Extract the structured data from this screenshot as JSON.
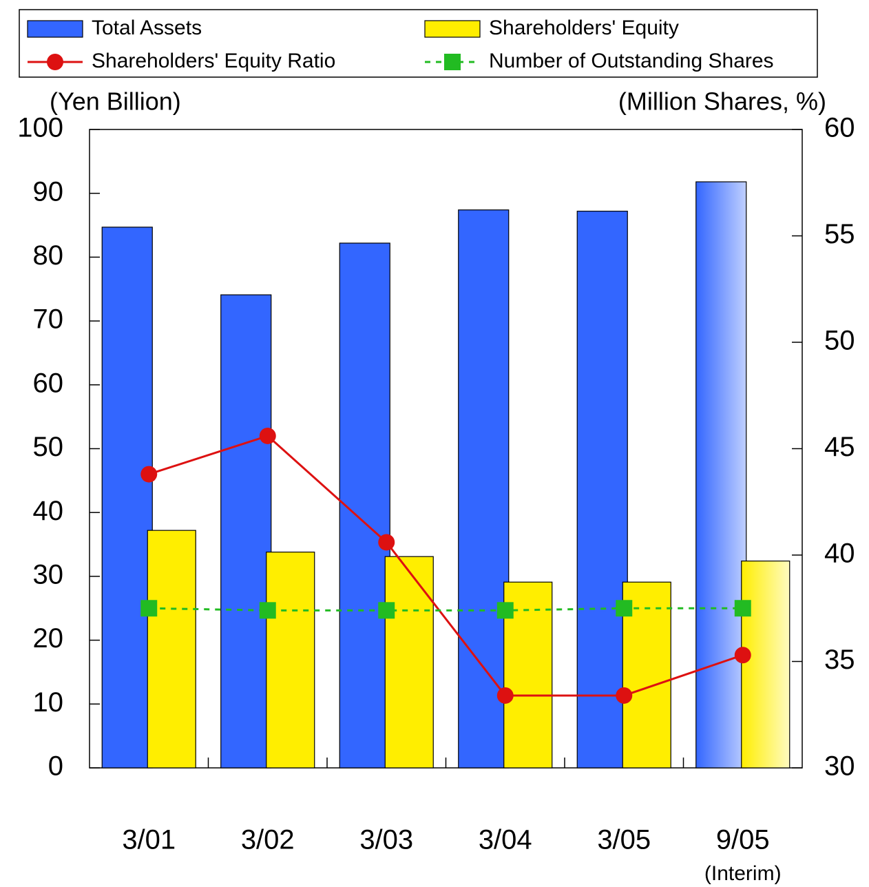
{
  "chart_data": {
    "type": "bar",
    "categories": [
      "3/01",
      "3/02",
      "3/03",
      "3/04",
      "3/05",
      "9/05"
    ],
    "annotations": [
      "(Interim)"
    ],
    "ylabel": "(Yen Billion)",
    "y2label": "(Million Shares, %)",
    "ylim": [
      0,
      100
    ],
    "yticks": [
      0,
      10,
      20,
      30,
      40,
      50,
      60,
      70,
      80,
      90,
      100
    ],
    "y2lim": [
      30,
      60
    ],
    "y2ticks": [
      30,
      35,
      40,
      45,
      50,
      55,
      60
    ],
    "grid": false,
    "series": [
      {
        "name": "Total Assets",
        "type": "bar",
        "color": "#3366ff",
        "values": [
          84.7,
          74.1,
          82.2,
          87.4,
          87.2,
          91.8
        ]
      },
      {
        "name": "Shareholders' Equity",
        "type": "bar",
        "color": "#ffee00",
        "values": [
          37.2,
          33.8,
          33.1,
          29.1,
          29.1,
          32.4
        ]
      },
      {
        "name": "Shareholders' Equity Ratio",
        "type": "line",
        "axis": "y2",
        "color": "#dd1111",
        "values": [
          43.8,
          45.6,
          40.6,
          33.4,
          33.4,
          35.3
        ]
      },
      {
        "name": "Number of Outstanding Shares",
        "type": "line",
        "axis": "y2",
        "dashed": true,
        "color": "#22bb22",
        "values": [
          37.5,
          37.4,
          37.4,
          37.4,
          37.5,
          37.5
        ]
      }
    ]
  }
}
